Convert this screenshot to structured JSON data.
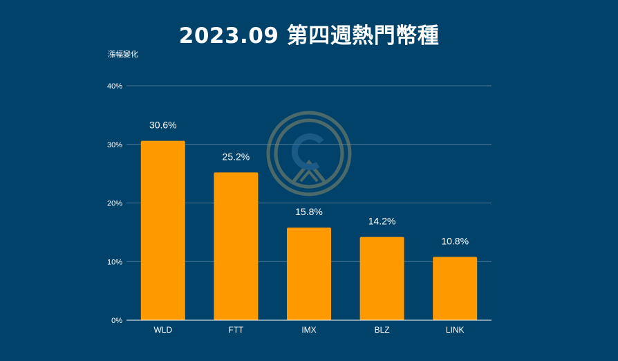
{
  "chart_data": {
    "type": "bar",
    "title": "2023.09 第四週熱門幣種",
    "ylabel": "漲幅變化",
    "xlabel": "",
    "categories": [
      "WLD",
      "FTT",
      "IMX",
      "BLZ",
      "LINK"
    ],
    "values": [
      30.6,
      25.2,
      15.8,
      14.2,
      10.8
    ],
    "value_labels": [
      "30.6%",
      "25.2%",
      "15.8%",
      "14.2%",
      "10.8%"
    ],
    "ylim": [
      0,
      40
    ],
    "yticks": [
      0,
      10,
      20,
      30,
      40
    ],
    "ytick_labels": [
      "0%",
      "10%",
      "20%",
      "30%",
      "40%"
    ],
    "grid": true,
    "legend": "none",
    "colors": {
      "background": "#01426a",
      "bar": "#ff9900",
      "grid": "#4d7b97",
      "text": "#ffffff",
      "watermark": "#8a8a6a"
    }
  }
}
